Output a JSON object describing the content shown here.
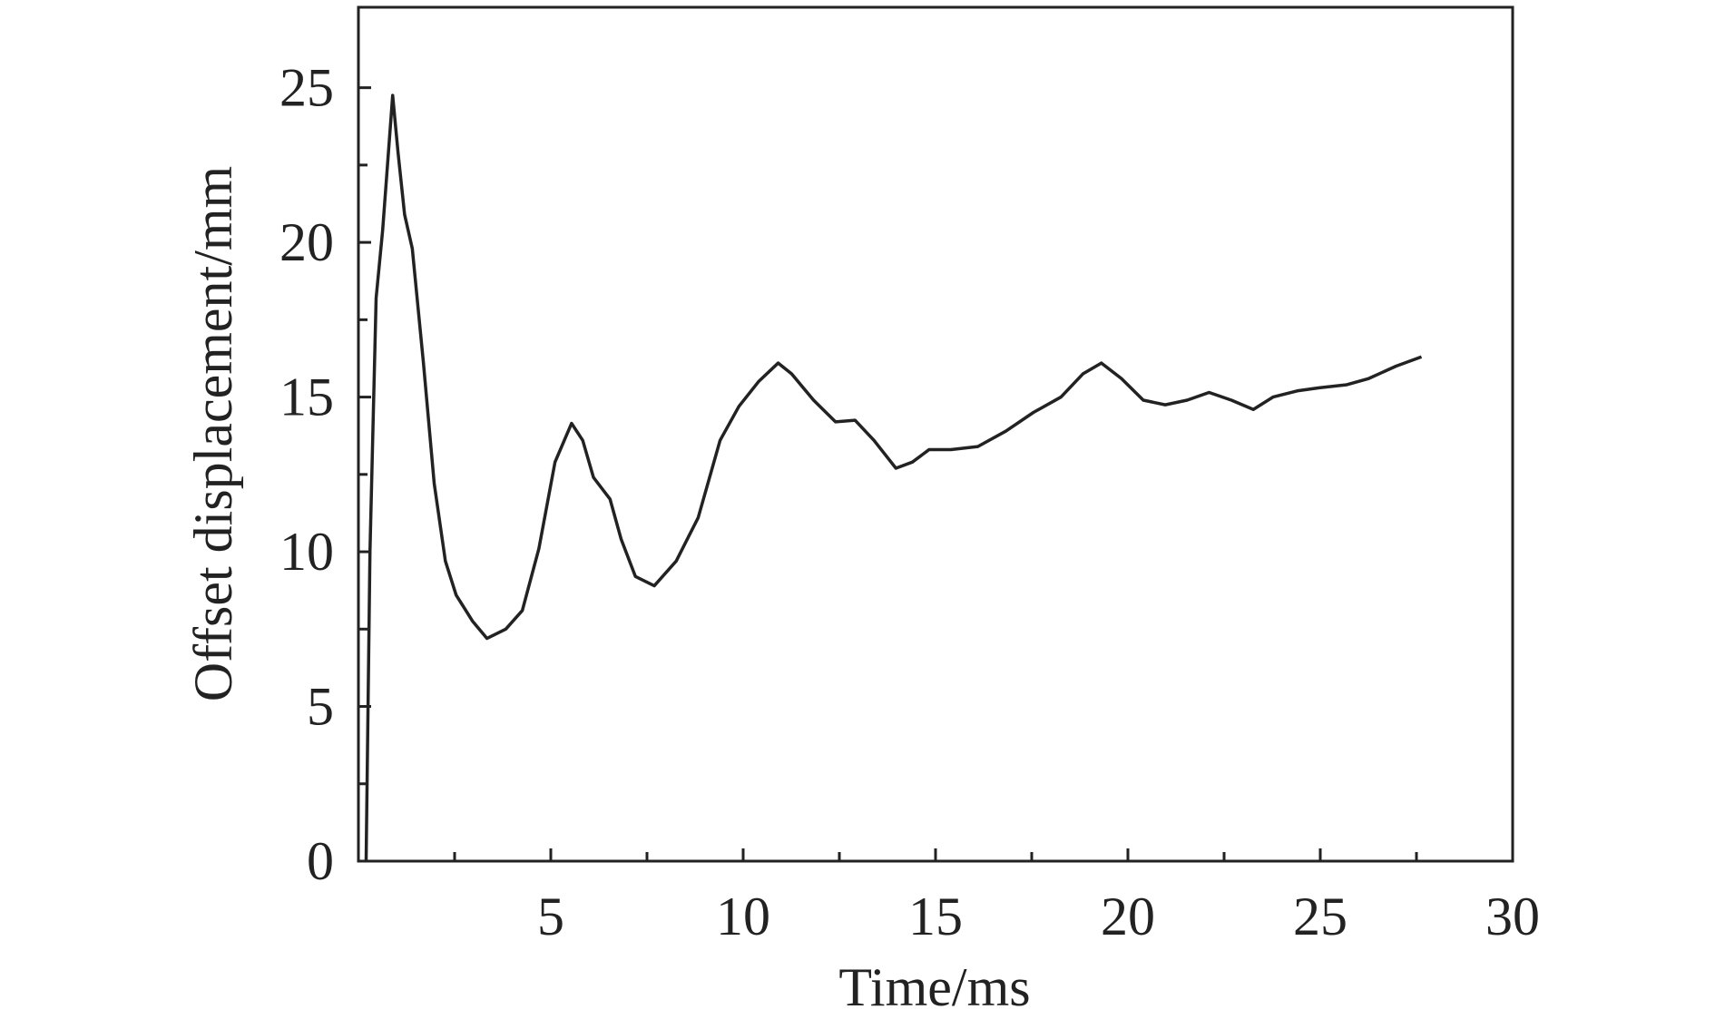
{
  "chart_data": {
    "type": "line",
    "xlabel": "Time/ms",
    "ylabel": "Offset displacement/mm",
    "xlim": [
      0,
      30
    ],
    "ylim": [
      0,
      27.6
    ],
    "xticks": [
      5,
      10,
      15,
      20,
      25,
      30
    ],
    "yticks": [
      0,
      5,
      10,
      15,
      20,
      25
    ],
    "xminorticks": [
      2.5,
      7.5,
      12.5,
      17.5,
      22.5,
      27.5
    ],
    "yminorticks": [
      2.5,
      7.5,
      12.5,
      17.5,
      22.5
    ],
    "series": [
      {
        "color": "#222222",
        "x": [
          0.2,
          0.3,
          0.46,
          0.63,
          0.89,
          1.03,
          1.2,
          1.4,
          1.69,
          1.97,
          2.26,
          2.54,
          2.97,
          3.34,
          3.83,
          4.26,
          4.69,
          5.11,
          5.54,
          5.83,
          6.11,
          6.54,
          6.83,
          7.2,
          7.69,
          8.26,
          8.83,
          9.4,
          9.89,
          10.4,
          10.91,
          11.26,
          11.83,
          12.4,
          12.91,
          13.4,
          13.97,
          14.4,
          14.83,
          15.4,
          16.1,
          16.83,
          17.54,
          18.26,
          18.83,
          19.31,
          19.83,
          20.4,
          20.97,
          21.54,
          22.11,
          22.69,
          23.26,
          23.77,
          24.4,
          24.97,
          25.69,
          26.26,
          26.97,
          27.63
        ],
        "values": [
          0,
          10,
          18.2,
          20.4,
          24.75,
          22.9,
          20.9,
          19.8,
          16.1,
          12.2,
          9.7,
          8.6,
          7.75,
          7.2,
          7.5,
          8.1,
          10.1,
          12.9,
          14.15,
          13.6,
          12.4,
          11.7,
          10.4,
          9.2,
          8.9,
          9.7,
          11.1,
          13.6,
          14.7,
          15.5,
          16.1,
          15.75,
          14.9,
          14.2,
          14.25,
          13.6,
          12.7,
          12.9,
          13.3,
          13.3,
          13.4,
          13.9,
          14.5,
          15.0,
          15.75,
          16.1,
          15.6,
          14.9,
          14.75,
          14.9,
          15.15,
          14.9,
          14.6,
          15.0,
          15.2,
          15.3,
          15.4,
          15.6,
          16.0,
          16.3
        ]
      }
    ]
  }
}
